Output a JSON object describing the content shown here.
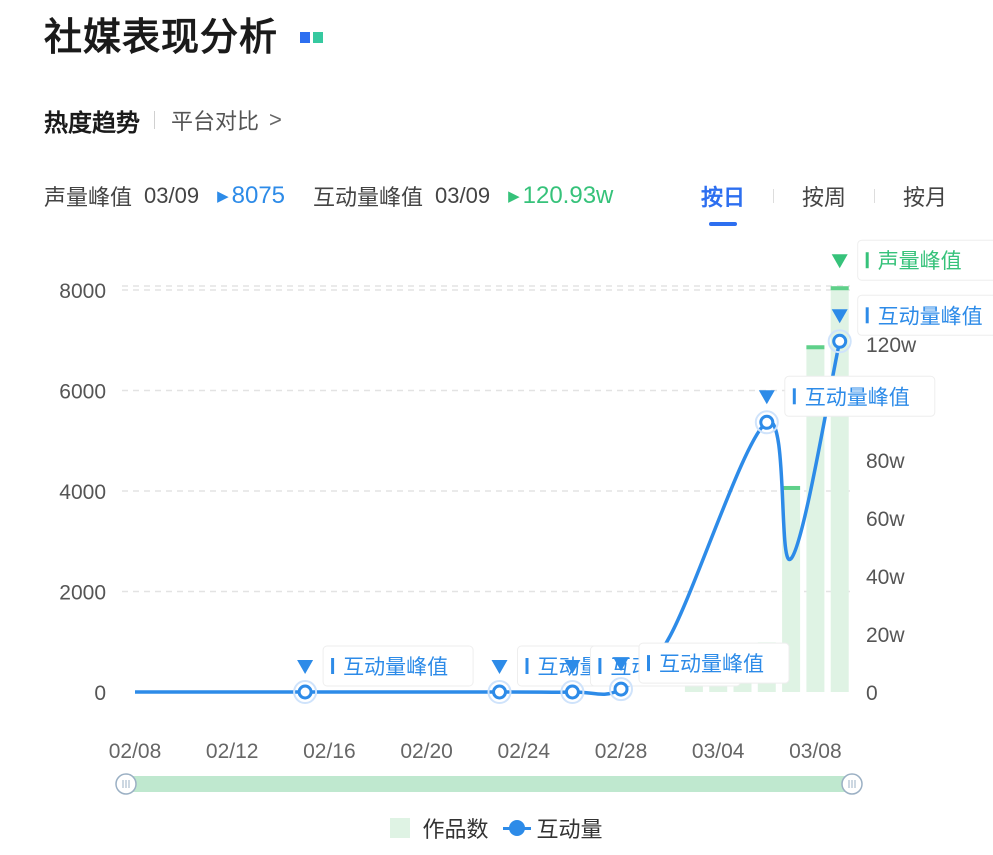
{
  "header": {
    "title": "社媒表现分析"
  },
  "subnav": {
    "active": "热度趋势",
    "link": "平台对比",
    "chevron": ">"
  },
  "stats": {
    "voice_peak_label": "声量峰值",
    "voice_peak_date": "03/09",
    "voice_peak_value": "8075",
    "interact_peak_label": "互动量峰值",
    "interact_peak_date": "03/09",
    "interact_peak_value": "120.93w"
  },
  "tabs": [
    {
      "label": "按日",
      "active": true
    },
    {
      "label": "按周",
      "active": false
    },
    {
      "label": "按月",
      "active": false
    }
  ],
  "colors": {
    "blue": "#2d8be8",
    "green": "#36c27a",
    "bar": "#dff3e4",
    "bar_top": "#5fd08a",
    "brand": "#2d6ff0"
  },
  "chart_data": {
    "type": "bar+line",
    "x_ticks": [
      "02/08",
      "02/12",
      "02/16",
      "02/20",
      "02/24",
      "02/28",
      "03/04",
      "03/08"
    ],
    "y_left": {
      "ticks": [
        "0",
        "2000",
        "4000",
        "6000",
        "8000"
      ],
      "ylim": [
        0,
        8000
      ]
    },
    "y_right": {
      "ticks": [
        "0",
        "20w",
        "40w",
        "60w",
        "80w",
        "120w"
      ],
      "ylim": [
        0,
        140
      ]
    },
    "grid": true,
    "series": [
      {
        "name": "作品数",
        "type": "bar",
        "x": [
          "03/03",
          "03/04",
          "03/05",
          "03/06",
          "03/07",
          "03/08",
          "03/09"
        ],
        "values": [
          300,
          420,
          600,
          980,
          4100,
          6900,
          8075
        ]
      },
      {
        "name": "互动量",
        "type": "line",
        "unit": "w",
        "x": [
          "02/08",
          "02/15",
          "02/23",
          "02/26",
          "02/28",
          "03/02",
          "03/06",
          "03/07",
          "03/09"
        ],
        "values": [
          0,
          0,
          0,
          0,
          1,
          19,
          93,
          46,
          120.93
        ]
      }
    ],
    "annotations": [
      {
        "label": "互动量峰值",
        "x": "02/15"
      },
      {
        "label": "互动量峰值",
        "x": "02/23"
      },
      {
        "label": "互动量峰值",
        "x": "02/26"
      },
      {
        "label": "互动量峰值",
        "x": "02/28"
      },
      {
        "label": "互动量峰值",
        "x": "03/06"
      },
      {
        "label": "互动量峰值",
        "x": "03/09"
      },
      {
        "label": "声量峰值",
        "x": "03/09"
      }
    ]
  }
}
